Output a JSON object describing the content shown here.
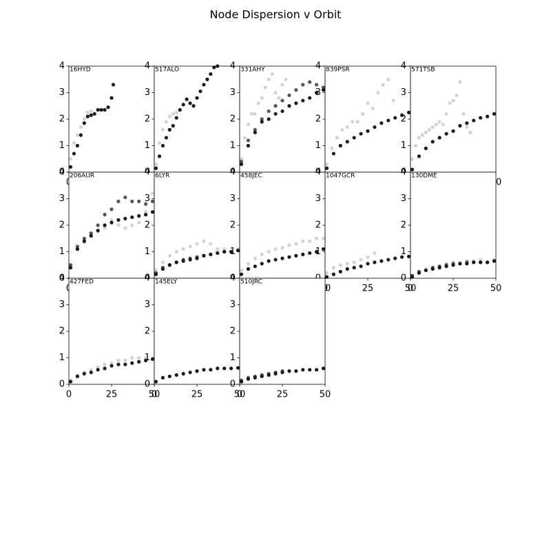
{
  "title": "Node Dispersion v Orbit",
  "chart_data": [
    {
      "type": "scatter",
      "label": "16HYD",
      "xlim": [
        0,
        50
      ],
      "ylim": [
        0,
        4
      ],
      "xticks": [
        0,
        25,
        50
      ],
      "yticks": [
        0,
        1,
        2,
        3,
        4
      ],
      "series": [
        {
          "color": "#d3d3d3",
          "x": [
            1,
            3,
            5,
            7,
            9,
            11,
            13,
            15
          ],
          "values": [
            0.5,
            1.1,
            1.4,
            1.7,
            2.0,
            2.25,
            2.3,
            2.2
          ]
        },
        {
          "color": "#1a1a1a",
          "x": [
            1,
            3,
            5,
            7,
            9,
            11,
            13,
            15,
            17,
            19,
            21,
            23,
            25,
            26
          ],
          "values": [
            0.2,
            0.7,
            1.0,
            1.4,
            1.85,
            2.1,
            2.15,
            2.2,
            2.35,
            2.35,
            2.35,
            2.45,
            2.8,
            3.3
          ]
        }
      ]
    },
    {
      "type": "scatter",
      "label": "517ALO",
      "xlim": [
        0,
        50
      ],
      "ylim": [
        0,
        4
      ],
      "xticks": [
        0,
        25,
        50
      ],
      "yticks": [
        0,
        1,
        2,
        3,
        4
      ],
      "series": [
        {
          "color": "#d3d3d3",
          "x": [
            1,
            3,
            5,
            7,
            9,
            11,
            13
          ],
          "values": [
            0.3,
            1.1,
            1.6,
            1.9,
            2.1,
            2.2,
            2.25
          ]
        },
        {
          "color": "#1a1a1a",
          "x": [
            1,
            3,
            5,
            7,
            9,
            11,
            13,
            15,
            17,
            19,
            21,
            23,
            25,
            27,
            29,
            31,
            33,
            35,
            37
          ],
          "values": [
            0.15,
            0.6,
            1.0,
            1.3,
            1.6,
            1.75,
            2.05,
            2.35,
            2.55,
            2.75,
            2.6,
            2.5,
            2.8,
            3.05,
            3.3,
            3.5,
            3.7,
            3.95,
            4.0
          ]
        }
      ]
    },
    {
      "type": "scatter",
      "label": "331AHY",
      "xlim": [
        0,
        50
      ],
      "ylim": [
        0,
        4
      ],
      "xticks": [
        0,
        25,
        50
      ],
      "yticks": [
        0,
        1,
        2,
        3,
        4
      ],
      "series": [
        {
          "color": "#d3d3d3",
          "x": [
            1,
            3,
            5,
            7,
            9,
            11,
            13,
            15,
            17,
            19,
            21,
            23,
            25,
            27
          ],
          "values": [
            0.5,
            1.3,
            1.8,
            2.2,
            2.2,
            2.6,
            2.8,
            3.2,
            3.5,
            3.7,
            3.0,
            2.8,
            3.3,
            3.5
          ]
        },
        {
          "color": "#555555",
          "x": [
            1,
            5,
            9,
            13,
            17,
            21,
            25,
            29,
            33,
            37,
            41,
            45,
            49
          ],
          "values": [
            0.4,
            1.2,
            1.6,
            2.0,
            2.3,
            2.5,
            2.7,
            2.9,
            3.1,
            3.3,
            3.4,
            3.3,
            3.2
          ]
        },
        {
          "color": "#1a1a1a",
          "x": [
            1,
            5,
            9,
            13,
            17,
            21,
            25,
            29,
            33,
            37,
            41,
            45,
            49
          ],
          "values": [
            0.3,
            1.0,
            1.5,
            1.9,
            2.0,
            2.2,
            2.3,
            2.5,
            2.6,
            2.7,
            2.8,
            3.0,
            3.1
          ]
        }
      ]
    },
    {
      "type": "scatter",
      "label": "839PSR",
      "xlim": [
        0,
        50
      ],
      "ylim": [
        0,
        4
      ],
      "xticks": [
        0,
        25,
        50
      ],
      "yticks": [
        0,
        1,
        2,
        3,
        4
      ],
      "series": [
        {
          "color": "#d3d3d3",
          "x": [
            1,
            4,
            7,
            10,
            13,
            16,
            19,
            22,
            25,
            28,
            31,
            34,
            37,
            40
          ],
          "values": [
            0.3,
            0.9,
            1.3,
            1.6,
            1.7,
            1.9,
            1.9,
            2.2,
            2.6,
            2.4,
            3.0,
            3.3,
            3.5,
            2.7
          ]
        },
        {
          "color": "#1a1a1a",
          "x": [
            1,
            5,
            9,
            13,
            17,
            21,
            25,
            29,
            33,
            37,
            41,
            45,
            49
          ],
          "values": [
            0.15,
            0.7,
            1.0,
            1.15,
            1.3,
            1.45,
            1.55,
            1.7,
            1.85,
            1.95,
            2.05,
            2.15,
            2.25
          ]
        }
      ]
    },
    {
      "type": "scatter",
      "label": "571TSB",
      "xlim": [
        0,
        50
      ],
      "ylim": [
        0,
        4
      ],
      "xticks": [
        0,
        25,
        50
      ],
      "yticks": [
        0,
        1,
        2,
        3,
        4
      ],
      "series": [
        {
          "color": "#d3d3d3",
          "x": [
            1,
            3,
            5,
            7,
            9,
            11,
            13,
            15,
            17,
            19,
            21,
            23,
            25,
            27,
            29,
            31,
            33,
            35
          ],
          "values": [
            0.5,
            1.0,
            1.3,
            1.4,
            1.5,
            1.6,
            1.7,
            1.8,
            1.9,
            1.8,
            2.2,
            2.6,
            2.7,
            2.9,
            3.4,
            2.2,
            1.7,
            1.5
          ]
        },
        {
          "color": "#1a1a1a",
          "x": [
            1,
            5,
            9,
            13,
            17,
            21,
            25,
            29,
            33,
            37,
            41,
            45,
            49
          ],
          "values": [
            0.1,
            0.6,
            0.9,
            1.15,
            1.3,
            1.45,
            1.55,
            1.75,
            1.85,
            1.95,
            2.05,
            2.1,
            2.2
          ]
        }
      ]
    },
    {
      "type": "scatter",
      "label": "206AUR",
      "xlim": [
        0,
        50
      ],
      "ylim": [
        0,
        4
      ],
      "xticks": [
        0,
        25,
        50
      ],
      "yticks": [
        0,
        1,
        2,
        3,
        4
      ],
      "series": [
        {
          "color": "#d3d3d3",
          "x": [
            1,
            5,
            9,
            13,
            17,
            21,
            25,
            29,
            33,
            37,
            41,
            45,
            49
          ],
          "values": [
            0.5,
            1.1,
            1.35,
            1.6,
            1.75,
            1.9,
            2.2,
            2.0,
            1.9,
            2.0,
            2.1,
            2.5,
            3.2
          ]
        },
        {
          "color": "#555555",
          "x": [
            1,
            5,
            9,
            13,
            17,
            21,
            25,
            29,
            33,
            37,
            41,
            45,
            49
          ],
          "values": [
            0.5,
            1.2,
            1.5,
            1.7,
            2.0,
            2.4,
            2.6,
            2.9,
            3.05,
            2.9,
            2.9,
            2.8,
            2.9
          ]
        },
        {
          "color": "#1a1a1a",
          "x": [
            1,
            5,
            9,
            13,
            17,
            21,
            25,
            29,
            33,
            37,
            41,
            45,
            49
          ],
          "values": [
            0.4,
            1.1,
            1.4,
            1.6,
            1.8,
            2.0,
            2.1,
            2.2,
            2.25,
            2.3,
            2.35,
            2.4,
            2.5
          ]
        }
      ]
    },
    {
      "type": "scatter",
      "label": "6LYR",
      "xlim": [
        0,
        50
      ],
      "ylim": [
        0,
        4
      ],
      "xticks": [
        0,
        25,
        50
      ],
      "yticks": [
        0,
        1,
        2,
        3,
        4
      ],
      "series": [
        {
          "color": "#d3d3d3",
          "x": [
            1,
            5,
            9,
            13,
            17,
            21,
            25,
            29,
            33,
            37,
            41,
            45,
            49
          ],
          "values": [
            0.3,
            0.6,
            0.85,
            1.0,
            1.1,
            1.2,
            1.3,
            1.4,
            1.3,
            1.1,
            1.1,
            1.0,
            1.1
          ]
        },
        {
          "color": "#555555",
          "x": [
            1,
            5,
            9,
            13,
            17,
            21,
            25,
            29,
            33,
            37,
            41,
            45,
            49
          ],
          "values": [
            0.2,
            0.4,
            0.5,
            0.6,
            0.7,
            0.75,
            0.8,
            0.85,
            0.9,
            0.95,
            1.0,
            1.0,
            1.05
          ]
        },
        {
          "color": "#1a1a1a",
          "x": [
            1,
            5,
            9,
            13,
            17,
            21,
            25,
            29,
            33,
            37,
            41,
            45,
            49
          ],
          "values": [
            0.15,
            0.35,
            0.5,
            0.6,
            0.65,
            0.7,
            0.75,
            0.85,
            0.9,
            0.95,
            1.0,
            1.0,
            1.05
          ]
        }
      ]
    },
    {
      "type": "scatter",
      "label": "458JEC",
      "xlim": [
        0,
        50
      ],
      "ylim": [
        0,
        4
      ],
      "xticks": [
        0,
        25,
        50
      ],
      "yticks": [
        0,
        1,
        2,
        3,
        4
      ],
      "series": [
        {
          "color": "#d3d3d3",
          "x": [
            1,
            5,
            9,
            13,
            17,
            21,
            25,
            29,
            33,
            37,
            41,
            45,
            49
          ],
          "values": [
            0.3,
            0.55,
            0.75,
            0.9,
            1.0,
            1.1,
            1.15,
            1.25,
            1.3,
            1.4,
            1.4,
            1.5,
            1.5
          ]
        },
        {
          "color": "#1a1a1a",
          "x": [
            1,
            5,
            9,
            13,
            17,
            21,
            25,
            29,
            33,
            37,
            41,
            45,
            49
          ],
          "values": [
            0.15,
            0.35,
            0.45,
            0.55,
            0.65,
            0.7,
            0.75,
            0.8,
            0.85,
            0.9,
            0.95,
            1.0,
            1.1
          ]
        }
      ]
    },
    {
      "type": "scatter",
      "label": "1047GCR",
      "xlim": [
        0,
        50
      ],
      "ylim": [
        0,
        4
      ],
      "xticks": [
        0,
        25,
        50
      ],
      "yticks": [
        0,
        1,
        2,
        3,
        4
      ],
      "series": [
        {
          "color": "#d3d3d3",
          "x": [
            1,
            5,
            9,
            13,
            17,
            21,
            25,
            29
          ],
          "values": [
            0.2,
            0.4,
            0.5,
            0.55,
            0.6,
            0.7,
            0.8,
            0.95
          ]
        },
        {
          "color": "#1a1a1a",
          "x": [
            1,
            5,
            9,
            13,
            17,
            21,
            25,
            29,
            33,
            37,
            41,
            45,
            49
          ],
          "values": [
            0.05,
            0.15,
            0.25,
            0.35,
            0.4,
            0.45,
            0.55,
            0.6,
            0.65,
            0.7,
            0.75,
            0.8,
            0.82
          ]
        }
      ]
    },
    {
      "type": "scatter",
      "label": "130DME",
      "xlim": [
        0,
        50
      ],
      "ylim": [
        0,
        4
      ],
      "xticks": [
        0,
        25,
        50
      ],
      "yticks": [
        0,
        1,
        2,
        3,
        4
      ],
      "series": [
        {
          "color": "#d3d3d3",
          "x": [
            1,
            5,
            9,
            13,
            17,
            21,
            25,
            29,
            33,
            37,
            41,
            45,
            49
          ],
          "values": [
            0.1,
            0.25,
            0.35,
            0.4,
            0.45,
            0.55,
            0.6,
            0.6,
            0.65,
            0.65,
            0.7,
            0.6,
            0.7
          ]
        },
        {
          "color": "#555555",
          "x": [
            1,
            5,
            9,
            13,
            17,
            21,
            25,
            29,
            33,
            37,
            41,
            45,
            49
          ],
          "values": [
            0.1,
            0.25,
            0.3,
            0.4,
            0.45,
            0.5,
            0.55,
            0.55,
            0.6,
            0.6,
            0.6,
            0.6,
            0.65
          ]
        },
        {
          "color": "#1a1a1a",
          "x": [
            1,
            5,
            9,
            13,
            17,
            21,
            25,
            29,
            33,
            37,
            41,
            45,
            49
          ],
          "values": [
            0.05,
            0.2,
            0.3,
            0.35,
            0.4,
            0.45,
            0.5,
            0.55,
            0.55,
            0.6,
            0.6,
            0.6,
            0.65
          ]
        }
      ]
    },
    {
      "type": "scatter",
      "label": "427FED",
      "xlim": [
        0,
        50
      ],
      "ylim": [
        0,
        4
      ],
      "xticks": [
        0,
        25,
        50
      ],
      "yticks": [
        0,
        1,
        2,
        3,
        4
      ],
      "series": [
        {
          "color": "#d3d3d3",
          "x": [
            1,
            5,
            9,
            13,
            17,
            21,
            25,
            29,
            33,
            37,
            41,
            45,
            49
          ],
          "values": [
            0.15,
            0.35,
            0.45,
            0.55,
            0.65,
            0.75,
            0.8,
            0.9,
            0.9,
            1.0,
            1.0,
            1.0,
            1.0
          ]
        },
        {
          "color": "#1a1a1a",
          "x": [
            1,
            5,
            9,
            13,
            17,
            21,
            25,
            29,
            33,
            37,
            41,
            45,
            49
          ],
          "values": [
            0.1,
            0.3,
            0.4,
            0.45,
            0.55,
            0.6,
            0.7,
            0.75,
            0.75,
            0.8,
            0.85,
            0.9,
            0.95
          ]
        }
      ]
    },
    {
      "type": "scatter",
      "label": "145ELY",
      "xlim": [
        0,
        50
      ],
      "ylim": [
        0,
        4
      ],
      "xticks": [
        0,
        25,
        50
      ],
      "yticks": [
        0,
        1,
        2,
        3,
        4
      ],
      "series": [
        {
          "color": "#1a1a1a",
          "x": [
            1,
            5,
            9,
            13,
            17,
            21,
            25,
            29,
            33,
            37,
            41,
            45,
            49
          ],
          "values": [
            0.1,
            0.25,
            0.3,
            0.35,
            0.4,
            0.45,
            0.5,
            0.55,
            0.55,
            0.6,
            0.6,
            0.6,
            0.62
          ]
        }
      ]
    },
    {
      "type": "scatter",
      "label": "510JRC",
      "xlim": [
        0,
        50
      ],
      "ylim": [
        0,
        4
      ],
      "xticks": [
        0,
        25,
        50
      ],
      "yticks": [
        0,
        1,
        2,
        3,
        4
      ],
      "series": [
        {
          "color": "#555555",
          "x": [
            1,
            5,
            9,
            13,
            17,
            21,
            25
          ],
          "values": [
            0.15,
            0.25,
            0.3,
            0.35,
            0.4,
            0.45,
            0.5
          ]
        },
        {
          "color": "#1a1a1a",
          "x": [
            1,
            5,
            9,
            13,
            17,
            21,
            25,
            29,
            33,
            37,
            41,
            45,
            49
          ],
          "values": [
            0.1,
            0.2,
            0.25,
            0.3,
            0.35,
            0.4,
            0.45,
            0.5,
            0.5,
            0.55,
            0.55,
            0.55,
            0.6
          ]
        }
      ]
    }
  ]
}
